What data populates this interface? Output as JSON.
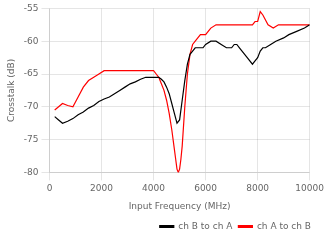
{
  "chart_data": {
    "type": "line",
    "xlabel": "Input Frequency (MHz)",
    "ylabel": "Crosstalk (dB)",
    "xlim": [
      0,
      10000
    ],
    "ylim": [
      -80,
      -55
    ],
    "xticks": [
      0,
      2000,
      4000,
      6000,
      8000,
      10000
    ],
    "yticks": [
      -80,
      -75,
      -70,
      -65,
      -60,
      -55
    ],
    "grid": true,
    "legend": "lower right",
    "series": [
      {
        "name": "ch B to ch A",
        "color": "black",
        "x": [
          200,
          350,
          500,
          700,
          900,
          1100,
          1300,
          1500,
          1700,
          1900,
          2100,
          2300,
          2500,
          2700,
          2900,
          3100,
          3300,
          3500,
          3700,
          3900,
          4000,
          4100,
          4200,
          4300,
          4400,
          4500,
          4600,
          4700,
          4800,
          4900,
          5000,
          5100,
          5200,
          5300,
          5400,
          5500,
          5600,
          5700,
          5800,
          5900,
          6000,
          6200,
          6400,
          6600,
          6800,
          7000,
          7100,
          7200,
          7300,
          7400,
          7600,
          7800,
          7900,
          8000,
          8100,
          8200,
          8300,
          8500,
          8700,
          9000,
          9200,
          9500,
          9800,
          10000
        ],
        "values": [
          -71.5,
          -72.0,
          -72.5,
          -72.2,
          -71.8,
          -71.2,
          -70.8,
          -70.2,
          -69.8,
          -69.2,
          -68.8,
          -68.5,
          -68.0,
          -67.5,
          -67.0,
          -66.5,
          -66.2,
          -65.8,
          -65.5,
          -65.5,
          -65.5,
          -65.5,
          -65.5,
          -65.8,
          -66.2,
          -67.0,
          -68.0,
          -69.5,
          -71.0,
          -72.5,
          -72.0,
          -69.0,
          -66.0,
          -63.5,
          -62.0,
          -61.5,
          -61.0,
          -61.0,
          -61.0,
          -61.0,
          -60.5,
          -60.0,
          -60.0,
          -60.5,
          -61.0,
          -61.0,
          -60.5,
          -60.5,
          -61.0,
          -61.5,
          -62.5,
          -63.5,
          -63.0,
          -62.5,
          -61.5,
          -61.0,
          -61.0,
          -60.5,
          -60.0,
          -59.5,
          -59.0,
          -58.5,
          -58.0,
          -57.5
        ]
      },
      {
        "name": "ch A to ch B",
        "color": "red",
        "x": [
          200,
          350,
          500,
          700,
          900,
          1100,
          1300,
          1500,
          1700,
          1900,
          2100,
          2300,
          2500,
          2700,
          2900,
          3100,
          3300,
          3500,
          3700,
          3900,
          4000,
          4100,
          4200,
          4300,
          4400,
          4500,
          4600,
          4700,
          4800,
          4850,
          4900,
          4950,
          5000,
          5050,
          5100,
          5200,
          5300,
          5400,
          5500,
          5600,
          5700,
          5800,
          5900,
          6000,
          6100,
          6200,
          6400,
          6600,
          6800,
          7000,
          7200,
          7400,
          7500,
          7600,
          7800,
          7900,
          8000,
          8100,
          8200,
          8400,
          8600,
          8800,
          9000,
          9200,
          9500,
          9800,
          10000
        ],
        "values": [
          -70.5,
          -70.0,
          -69.5,
          -69.8,
          -70.0,
          -68.5,
          -67.0,
          -66.0,
          -65.5,
          -65.0,
          -64.5,
          -64.5,
          -64.5,
          -64.5,
          -64.5,
          -64.5,
          -64.5,
          -64.5,
          -64.5,
          -64.5,
          -64.5,
          -65.0,
          -65.5,
          -66.5,
          -67.5,
          -69.0,
          -71.0,
          -73.5,
          -76.5,
          -78.0,
          -79.5,
          -80.0,
          -79.5,
          -78.0,
          -76.0,
          -70.0,
          -65.0,
          -62.0,
          -60.5,
          -60.0,
          -59.5,
          -59.0,
          -59.0,
          -59.0,
          -58.5,
          -58.0,
          -57.5,
          -57.5,
          -57.5,
          -57.5,
          -57.5,
          -57.5,
          -57.5,
          -57.5,
          -57.5,
          -57.0,
          -57.0,
          -55.5,
          -56.0,
          -57.5,
          -58.0,
          -57.5,
          -57.5,
          -57.5,
          -57.5,
          -57.5,
          -57.5
        ]
      }
    ]
  }
}
